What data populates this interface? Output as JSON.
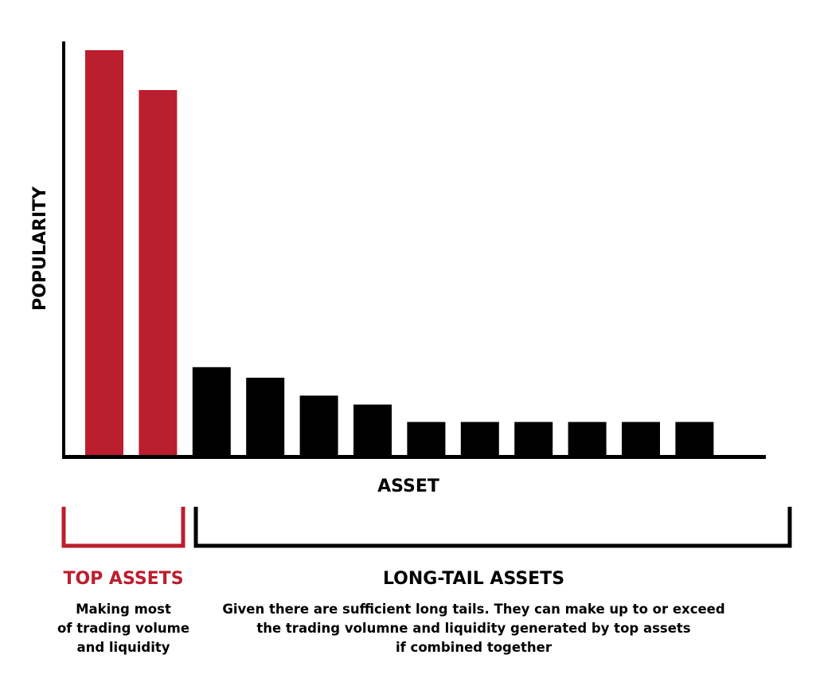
{
  "chart_data": {
    "type": "bar",
    "title": "",
    "xlabel": "ASSET",
    "ylabel": "POPULARITY",
    "categories": [
      "",
      "",
      "",
      "",
      "",
      "",
      "",
      "",
      "",
      "",
      "",
      ""
    ],
    "values": [
      100,
      90.2,
      22,
      19.4,
      15,
      12.8,
      8.5,
      8.5,
      8.5,
      8.5,
      8.5,
      8.5
    ],
    "ylim": [
      0,
      100
    ],
    "grid": false,
    "bar_colors": [
      "#bb1e2e",
      "#bb1e2e",
      "#000000",
      "#000000",
      "#000000",
      "#000000",
      "#000000",
      "#000000",
      "#000000",
      "#000000",
      "#000000",
      "#000000"
    ]
  },
  "groups": {
    "top": {
      "title": "TOP ASSETS",
      "color": "#bb1e2e",
      "description": [
        "Making most",
        "of trading volume",
        "and liquidity"
      ]
    },
    "long_tail": {
      "title": "LONG-TAIL ASSETS",
      "color": "#000000",
      "description": [
        "Given there are sufficient long tails. They can make up to or exceed",
        "the trading volumne and liquidity generated by top assets",
        "if combined together"
      ]
    }
  }
}
